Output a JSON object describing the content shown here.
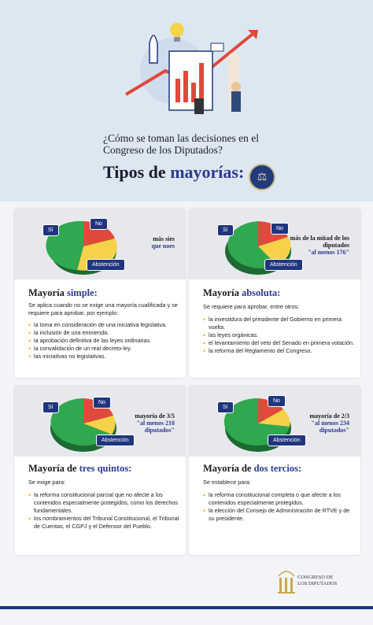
{
  "header": {
    "question": "¿Cómo se toman las decisiones en el Congreso de los Diputados?",
    "types_prefix": "Tipos de ",
    "types_highlight": "mayorías:"
  },
  "labels": {
    "si": "Sí",
    "no": "No",
    "abstencion": "Abstención"
  },
  "colors": {
    "si": "#2fa84f",
    "no": "#e04a3c",
    "abstencion": "#f5d247",
    "navy": "#1f357d",
    "accent": "#2c3b8f",
    "bullet": "#e6b828"
  },
  "cards": [
    {
      "title_prefix": "Mayoría ",
      "title_highlight": "simple:",
      "side_line1": "más síes",
      "side_line2": "que noes",
      "intro": "Se aplica cuando no se exige una mayoría cualificada y se requiere para aprobar, por ejemplo:",
      "items": [
        "la toma en consideración de una iniciativa legislativa.",
        "la inclusión de una enmienda.",
        "la aprobación definitiva de las leyes ordinarias.",
        "la convalidación de un real decreto-ley.",
        "las iniciativas no legislativas."
      ]
    },
    {
      "title_prefix": "Mayoría ",
      "title_highlight": "absoluta:",
      "side_line1": "más de la mitad de los diputados",
      "side_line2": "\"al menos 176\"",
      "intro": "Se requiere para aprobar, entre otros:",
      "items": [
        "la investidura del presidente del Gobierno en primera vuelta.",
        "las leyes orgánicas.",
        "el levantamiento del veto del Senado en primera votación.",
        "la reforma del Reglamento del Congreso."
      ]
    },
    {
      "title_prefix": "Mayoría de ",
      "title_highlight": "tres quintos:",
      "side_line1": "mayoría de 3/5",
      "side_line2": "\"al menos 210 diputados\"",
      "intro": "Se exige para:",
      "items": [
        "la reforma constitucional parcial que no afecte a los contenidos especialmente protegidos, como los derechos fundamentales.",
        "los nombramientos del Tribunal Constitucional, el Tribunal de Cuentas, el CGPJ y el Defensor del Pueblo."
      ]
    },
    {
      "title_prefix": "Mayoría de ",
      "title_highlight": "dos tercios:",
      "side_line1": "mayoría de 2/3",
      "side_line2": "\"al menos 234 diputados\"",
      "intro": "Se establece para:",
      "items": [
        "la reforma constitucional completa o que afecte a los contenidos especialmente protegidos.",
        "la elección del Consejo de Administración de RTVE y de su presidente."
      ]
    }
  ],
  "footer": {
    "logo_line1": "CONGRESO DE",
    "logo_line2": "LOS DIPUTADOS"
  }
}
